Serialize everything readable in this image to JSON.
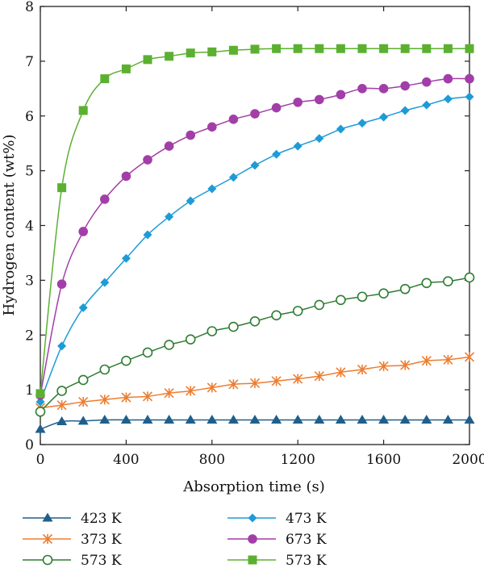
{
  "chart_data": {
    "type": "line",
    "xlabel": "Absorption time (s)",
    "ylabel": "Hydrogen content (wt%)",
    "xlim": [
      0,
      2000
    ],
    "ylim": [
      0,
      8
    ],
    "xticks": [
      0,
      400,
      800,
      1200,
      1600,
      2000
    ],
    "yticks": [
      0,
      1,
      2,
      3,
      4,
      5,
      6,
      7,
      8
    ],
    "grid": false,
    "legend_position": "bottom",
    "x": [
      0,
      100,
      200,
      300,
      400,
      500,
      600,
      700,
      800,
      900,
      1000,
      1100,
      1200,
      1300,
      1400,
      1500,
      1600,
      1700,
      1800,
      1900,
      2000
    ],
    "series": [
      {
        "name": "423 K",
        "color": "#1f5f8b",
        "marker": "triangle",
        "values": [
          0.28,
          0.42,
          0.43,
          0.45,
          0.45,
          0.45,
          0.45,
          0.45,
          0.45,
          0.45,
          0.45,
          0.45,
          0.45,
          0.45,
          0.45,
          0.45,
          0.45,
          0.45,
          0.45,
          0.45,
          0.45
        ]
      },
      {
        "name": "373 K",
        "color": "#ed7d31",
        "marker": "asterisk",
        "values": [
          0.67,
          0.72,
          0.78,
          0.82,
          0.86,
          0.88,
          0.94,
          0.98,
          1.04,
          1.1,
          1.12,
          1.16,
          1.2,
          1.25,
          1.32,
          1.37,
          1.43,
          1.45,
          1.53,
          1.55,
          1.6
        ]
      },
      {
        "name": "573 K",
        "color": "#2e7d32",
        "marker": "open-circle",
        "values": [
          0.6,
          0.98,
          1.18,
          1.37,
          1.53,
          1.68,
          1.82,
          1.92,
          2.07,
          2.15,
          2.25,
          2.36,
          2.44,
          2.55,
          2.64,
          2.7,
          2.76,
          2.84,
          2.95,
          2.98,
          3.05
        ]
      },
      {
        "name": "473 K",
        "color": "#1e9bd7",
        "marker": "diamond",
        "values": [
          0.78,
          1.8,
          2.5,
          2.96,
          3.4,
          3.83,
          4.16,
          4.45,
          4.67,
          4.88,
          5.1,
          5.3,
          5.45,
          5.59,
          5.76,
          5.87,
          5.98,
          6.1,
          6.2,
          6.31,
          6.35
        ]
      },
      {
        "name": "673 K",
        "color": "#a23ea8",
        "marker": "filled-circle",
        "values": [
          0.9,
          2.93,
          3.89,
          4.48,
          4.9,
          5.2,
          5.45,
          5.65,
          5.8,
          5.94,
          6.04,
          6.15,
          6.25,
          6.3,
          6.39,
          6.5,
          6.5,
          6.55,
          6.62,
          6.68,
          6.68
        ]
      },
      {
        "name": "573 K",
        "color": "#5cb031",
        "marker": "square",
        "values": [
          0.93,
          4.69,
          6.1,
          6.68,
          6.86,
          7.03,
          7.09,
          7.15,
          7.17,
          7.2,
          7.22,
          7.23,
          7.23,
          7.23,
          7.23,
          7.23,
          7.23,
          7.23,
          7.23,
          7.23,
          7.23
        ]
      }
    ]
  }
}
